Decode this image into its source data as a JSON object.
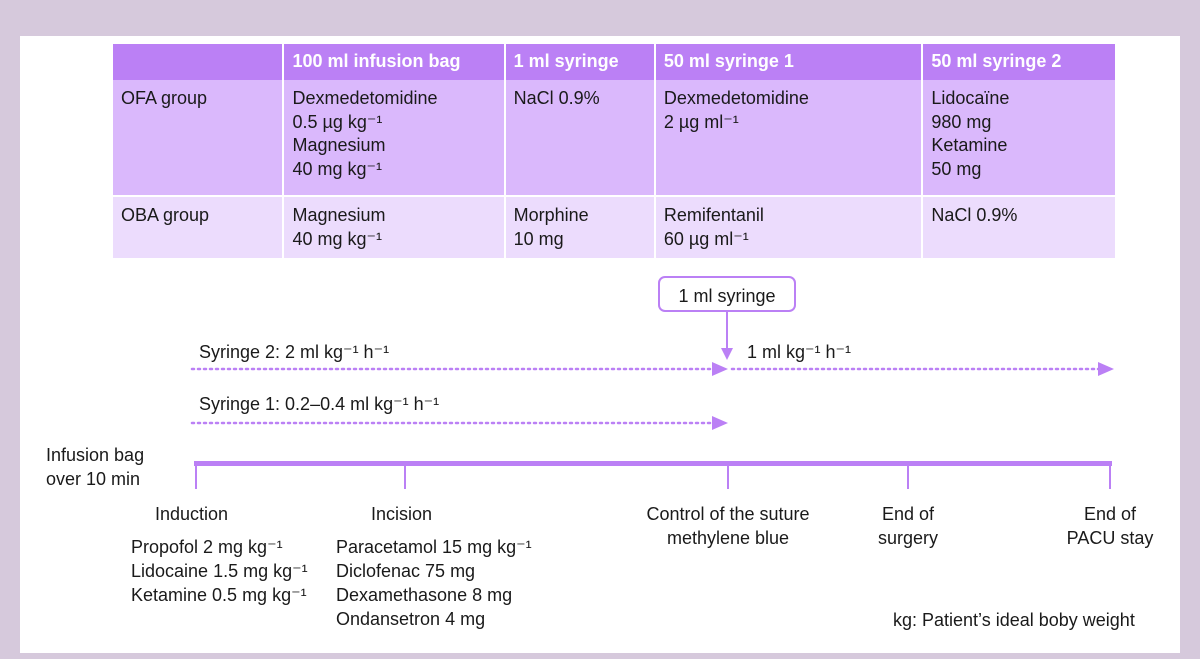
{
  "table": {
    "headers": [
      "",
      "100 ml infusion bag",
      "1 ml syringe",
      "50 ml syringe 1",
      "50 ml syringe 2"
    ],
    "rows": [
      {
        "group": "OFA group",
        "bag": [
          "Dexmedetomidine",
          "0.5 µg kg⁻¹",
          "Magnesium",
          "40 mg kg⁻¹"
        ],
        "syringe1ml": [
          "NaCl 0.9%"
        ],
        "syringe50_1": [
          "Dexmedetomidine",
          "2 µg ml⁻¹"
        ],
        "syringe50_2": [
          "Lidocaïne",
          "980 mg",
          "Ketamine",
          "50 mg"
        ]
      },
      {
        "group": "OBA group",
        "bag": [
          "Magnesium",
          "40 mg kg⁻¹"
        ],
        "syringe1ml": [
          "Morphine",
          "10 mg"
        ],
        "syringe50_1": [
          "Remifentanil",
          "60 µg ml⁻¹"
        ],
        "syringe50_2": [
          "NaCl 0.9%"
        ]
      }
    ]
  },
  "timeline": {
    "syringe_box": "1 ml syringe",
    "syringe2_rate": "Syringe 2: 2 ml kg⁻¹ h⁻¹",
    "syringe2_after": "1 ml kg⁻¹ h⁻¹",
    "syringe1_rate": "Syringe 1: 0.2–0.4 ml kg⁻¹ h⁻¹",
    "infusion_bag": [
      "Infusion bag",
      "over 10 min"
    ],
    "events": {
      "induction": "Induction",
      "incision": "Incision",
      "control": [
        "Control of the suture",
        "methylene blue"
      ],
      "end_surgery": [
        "End of",
        "surgery"
      ],
      "end_pacu": [
        "End of",
        "PACU stay"
      ]
    },
    "induction_drugs": [
      "Propofol 2 mg kg⁻¹",
      "Lidocaine 1.5 mg kg⁻¹",
      "Ketamine 0.5 mg kg⁻¹"
    ],
    "incision_drugs": [
      "Paracetamol 15 mg kg⁻¹",
      "Diclofenac 75 mg",
      "Dexamethasone 8 mg",
      "Ondansetron 4 mg"
    ],
    "footnote": "kg: Patient’s ideal boby weight"
  },
  "colors": {
    "accent": "#bb80f5",
    "row1": "#dab8fc",
    "row2": "#ecdcfd",
    "background": "#d6c9dc"
  }
}
